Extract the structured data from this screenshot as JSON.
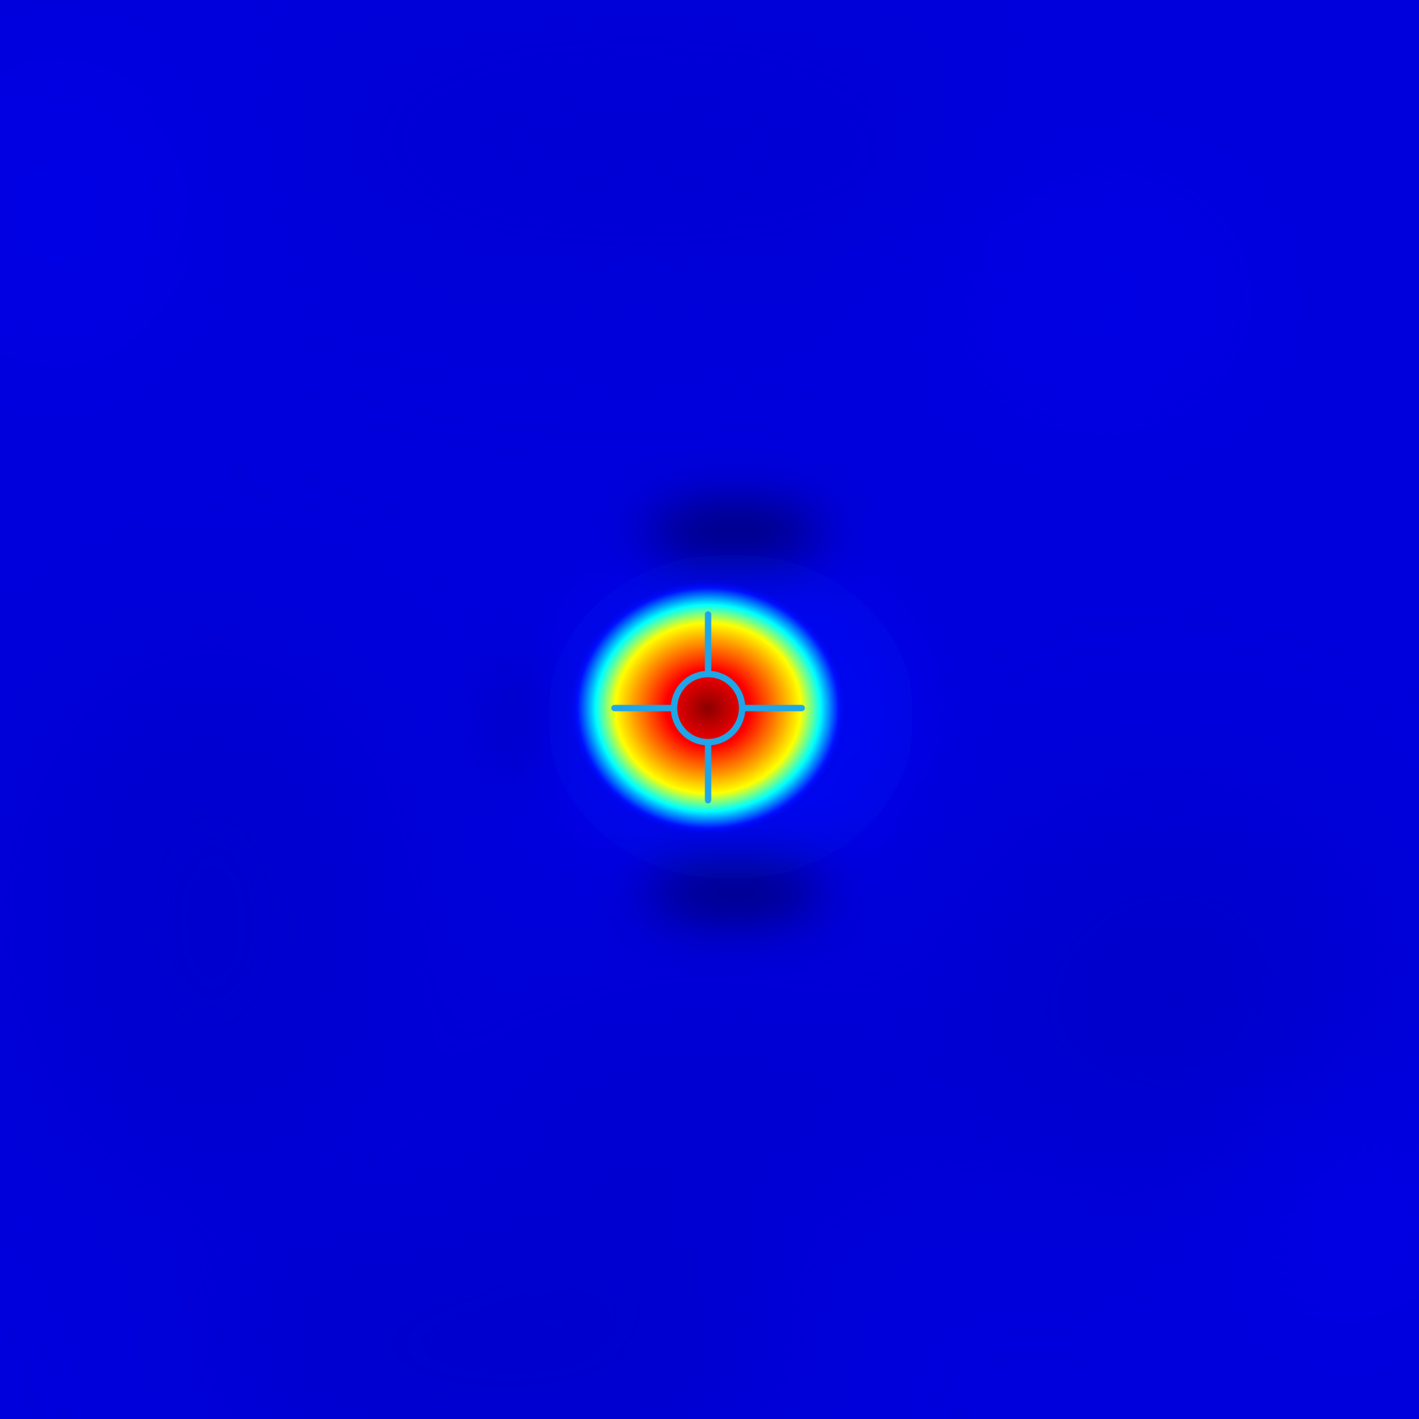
{
  "colormap": "jet",
  "colors": {
    "background_blue": "#0000dc",
    "dark_lobe": "#00005a",
    "peak_center": "#8b0000",
    "red": "#ff0000",
    "orange": "#ff9900",
    "yellow": "#ffff00",
    "cyan": "#00ffff",
    "crosshair": "#1ea6e8"
  },
  "icons": {
    "crosshair": "crosshair-icon"
  }
}
